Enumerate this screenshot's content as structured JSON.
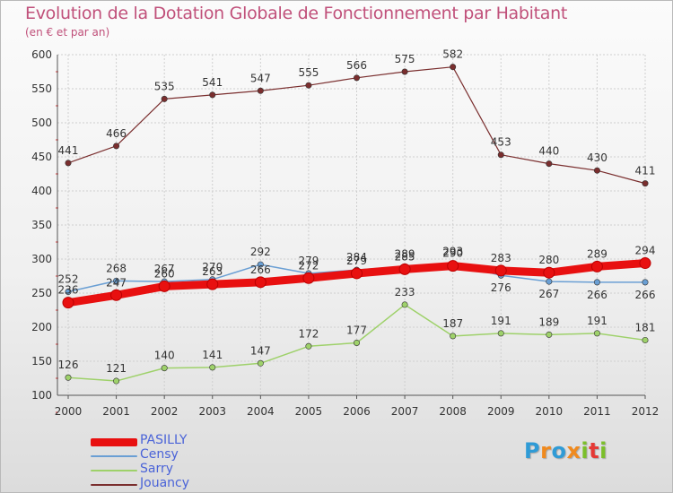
{
  "title": "Evolution de la Dotation Globale de Fonctionnement par Habitant",
  "subtitle": "(en € et par an)",
  "logo": {
    "text": "Proxiti",
    "colors": [
      "#2f9bd6",
      "#f08a1e",
      "#2f9bd6",
      "#f08a1e",
      "#7bbf2a",
      "#e53935",
      "#7bbf2a"
    ]
  },
  "chart_data": {
    "type": "line",
    "title": "Evolution de la Dotation Globale de Fonctionnement par Habitant",
    "subtitle": "(en € et par an)",
    "x": [
      "2000",
      "2001",
      "2002",
      "2003",
      "2004",
      "2005",
      "2006",
      "2007",
      "2008",
      "2009",
      "2010",
      "2011",
      "2012"
    ],
    "ylim": [
      100,
      600
    ],
    "yticks": [
      100,
      150,
      200,
      250,
      300,
      350,
      400,
      450,
      500,
      550,
      600
    ],
    "grid": true,
    "legend_position": "bottom-left",
    "series": [
      {
        "name": "PASILLY",
        "color": "#e81010",
        "width": 9,
        "values": [
          236,
          247,
          260,
          263,
          266,
          272,
          279,
          285,
          290,
          283,
          280,
          289,
          294
        ],
        "labels": [
          "236",
          "247",
          "260",
          "263",
          "266",
          "272",
          "279",
          "285",
          "290",
          "283",
          "280",
          "289",
          "294"
        ]
      },
      {
        "name": "Censy",
        "color": "#6a9fd4",
        "width": 1.5,
        "values": [
          252,
          268,
          267,
          270,
          292,
          279,
          284,
          289,
          293,
          276,
          267,
          266,
          266
        ],
        "labels": [
          "252",
          "268",
          "267",
          "270",
          "292",
          "279",
          "284",
          "289",
          "293",
          "276",
          "267",
          "266",
          "266"
        ]
      },
      {
        "name": "Sarry",
        "color": "#9ed16a",
        "width": 1.5,
        "values": [
          126,
          121,
          140,
          141,
          147,
          172,
          177,
          233,
          187,
          191,
          189,
          191,
          181
        ],
        "labels": [
          "126",
          "121",
          "140",
          "141",
          "147",
          "172",
          "177",
          "233",
          "187",
          "191",
          "189",
          "191",
          "181"
        ]
      },
      {
        "name": "Jouancy",
        "color": "#7a2e2e",
        "width": 1.2,
        "values": [
          441,
          466,
          535,
          541,
          547,
          555,
          566,
          575,
          582,
          453,
          440,
          430,
          411
        ],
        "labels": [
          "441",
          "466",
          "535",
          "541",
          "547",
          "555",
          "566",
          "575",
          "582",
          "453",
          "440",
          "430",
          "411"
        ]
      }
    ]
  }
}
